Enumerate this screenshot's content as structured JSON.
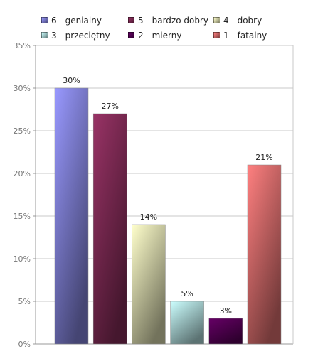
{
  "chart_data": {
    "type": "bar",
    "title": "",
    "xlabel": "",
    "ylabel": "",
    "ylim": [
      0,
      35
    ],
    "yticks": [
      "0%",
      "5%",
      "10%",
      "15%",
      "20%",
      "25%",
      "30%",
      "35%"
    ],
    "y_tick_values": [
      0,
      5,
      10,
      15,
      20,
      25,
      30,
      35
    ],
    "grid": true,
    "legend_position": "top",
    "categories": [
      "6 - genialny",
      "5 - bardzo dobry",
      "4 - dobry",
      "3 - przeciętny",
      "2 - mierny",
      "1 - fatalny"
    ],
    "values": [
      30,
      27,
      14,
      5,
      3,
      21
    ],
    "data_labels": [
      "30%",
      "27%",
      "14%",
      "5%",
      "3%",
      "21%"
    ],
    "colors": [
      "#9999ff",
      "#993366",
      "#ffffcc",
      "#ccffff",
      "#660066",
      "#ff8080"
    ]
  }
}
